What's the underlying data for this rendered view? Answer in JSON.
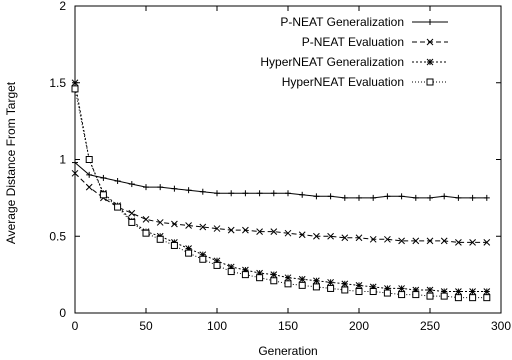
{
  "chart_data": {
    "type": "line",
    "title": "",
    "xlabel": "Generation",
    "ylabel": "Average Distance From Target",
    "xlim": [
      0,
      300
    ],
    "ylim": [
      0,
      2
    ],
    "xticks": [
      "0",
      "50",
      "100",
      "150",
      "200",
      "250",
      "300"
    ],
    "yticks": [
      "0",
      "0.5",
      "1",
      "1.5",
      "2"
    ],
    "grid": false,
    "legend_position": "top-right",
    "x": [
      0,
      10,
      20,
      30,
      40,
      50,
      60,
      70,
      80,
      90,
      100,
      110,
      120,
      130,
      140,
      150,
      160,
      170,
      180,
      190,
      200,
      210,
      220,
      230,
      240,
      250,
      260,
      270,
      280,
      290
    ],
    "series": [
      {
        "name": "P-NEAT Generalization",
        "marker": "plus",
        "dash": "none",
        "values": [
          0.98,
          0.9,
          0.88,
          0.86,
          0.84,
          0.82,
          0.82,
          0.81,
          0.8,
          0.79,
          0.78,
          0.78,
          0.78,
          0.78,
          0.78,
          0.78,
          0.77,
          0.76,
          0.76,
          0.75,
          0.75,
          0.75,
          0.76,
          0.76,
          0.75,
          0.75,
          0.76,
          0.75,
          0.75,
          0.75
        ]
      },
      {
        "name": "P-NEAT Evaluation",
        "marker": "x",
        "dash": "5,3",
        "values": [
          0.91,
          0.82,
          0.75,
          0.69,
          0.65,
          0.61,
          0.59,
          0.58,
          0.57,
          0.56,
          0.55,
          0.54,
          0.54,
          0.53,
          0.53,
          0.52,
          0.51,
          0.5,
          0.5,
          0.49,
          0.49,
          0.48,
          0.48,
          0.47,
          0.47,
          0.47,
          0.47,
          0.46,
          0.46,
          0.46
        ]
      },
      {
        "name": "HyperNEAT Generalization",
        "marker": "star",
        "dash": "2,2",
        "values": [
          1.5,
          1.0,
          0.78,
          0.7,
          0.6,
          0.53,
          0.5,
          0.46,
          0.42,
          0.38,
          0.34,
          0.3,
          0.28,
          0.26,
          0.25,
          0.23,
          0.22,
          0.21,
          0.2,
          0.19,
          0.18,
          0.17,
          0.16,
          0.16,
          0.15,
          0.15,
          0.14,
          0.14,
          0.14,
          0.14
        ]
      },
      {
        "name": "HyperNEAT Evaluation",
        "marker": "square",
        "dash": "1,2",
        "values": [
          1.46,
          1.0,
          0.77,
          0.69,
          0.59,
          0.52,
          0.48,
          0.44,
          0.39,
          0.35,
          0.31,
          0.27,
          0.25,
          0.23,
          0.21,
          0.19,
          0.18,
          0.17,
          0.16,
          0.15,
          0.14,
          0.14,
          0.13,
          0.12,
          0.12,
          0.11,
          0.11,
          0.1,
          0.1,
          0.1
        ]
      }
    ]
  }
}
